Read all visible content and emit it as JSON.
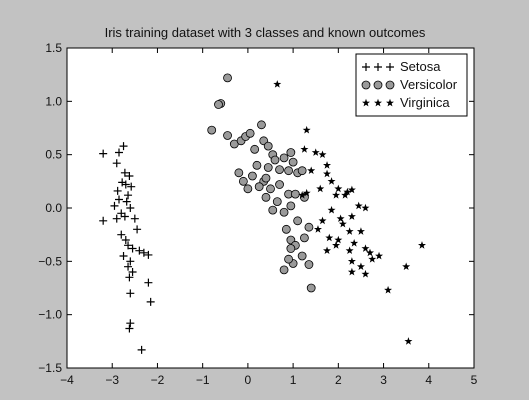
{
  "chart_data": {
    "type": "scatter",
    "title": "Iris training dataset with 3 classes and known outcomes",
    "xlabel": "",
    "ylabel": "",
    "xlim": [
      -4,
      5
    ],
    "ylim": [
      -1.5,
      1.5
    ],
    "xticks": [
      -4,
      -3,
      -2,
      -1,
      0,
      1,
      2,
      3,
      4,
      5
    ],
    "yticks": [
      -1.5,
      -1.0,
      -0.5,
      0.0,
      0.5,
      1.0,
      1.5
    ],
    "xtick_labels": [
      "−4",
      "−3",
      "−2",
      "−1",
      "0",
      "1",
      "2",
      "3",
      "4",
      "5"
    ],
    "ytick_labels": [
      "−1.5",
      "−1.0",
      "−0.5",
      "0.0",
      "0.5",
      "1.0",
      "1.5"
    ],
    "grid": false,
    "legend_position": "top-right",
    "series": [
      {
        "name": "Setosa",
        "marker": "plus",
        "color": "#000000",
        "points": [
          [
            -3.2,
            0.51
          ],
          [
            -2.85,
            0.52
          ],
          [
            -2.75,
            0.58
          ],
          [
            -2.9,
            0.42
          ],
          [
            -2.72,
            0.33
          ],
          [
            -2.62,
            0.3
          ],
          [
            -2.78,
            0.24
          ],
          [
            -2.7,
            0.22
          ],
          [
            -2.88,
            0.16
          ],
          [
            -2.58,
            0.2
          ],
          [
            -2.65,
            0.12
          ],
          [
            -2.85,
            0.08
          ],
          [
            -2.68,
            0.06
          ],
          [
            -2.95,
            0.02
          ],
          [
            -2.6,
            0.0
          ],
          [
            -2.8,
            -0.05
          ],
          [
            -2.72,
            -0.08
          ],
          [
            -3.2,
            -0.12
          ],
          [
            -2.9,
            -0.1
          ],
          [
            -2.5,
            -0.1
          ],
          [
            -2.45,
            -0.2
          ],
          [
            -2.8,
            -0.25
          ],
          [
            -2.7,
            -0.3
          ],
          [
            -2.65,
            -0.35
          ],
          [
            -2.55,
            -0.38
          ],
          [
            -2.4,
            -0.4
          ],
          [
            -2.3,
            -0.42
          ],
          [
            -2.2,
            -0.44
          ],
          [
            -2.75,
            -0.45
          ],
          [
            -2.6,
            -0.5
          ],
          [
            -2.65,
            -0.55
          ],
          [
            -2.55,
            -0.6
          ],
          [
            -2.62,
            -0.65
          ],
          [
            -2.2,
            -0.7
          ],
          [
            -2.6,
            -0.8
          ],
          [
            -2.15,
            -0.88
          ],
          [
            -2.6,
            -1.08
          ],
          [
            -2.62,
            -1.13
          ],
          [
            -2.35,
            -1.33
          ]
        ]
      },
      {
        "name": "Versicolor",
        "marker": "circle",
        "color": "#9a9a9a",
        "points": [
          [
            -0.45,
            1.22
          ],
          [
            -0.6,
            0.98
          ],
          [
            -0.65,
            0.97
          ],
          [
            -0.8,
            0.73
          ],
          [
            -0.45,
            0.68
          ],
          [
            -0.3,
            0.6
          ],
          [
            -0.15,
            0.63
          ],
          [
            -0.05,
            0.67
          ],
          [
            0.05,
            0.7
          ],
          [
            0.3,
            0.78
          ],
          [
            0.35,
            0.63
          ],
          [
            0.45,
            0.58
          ],
          [
            0.15,
            0.55
          ],
          [
            0.55,
            0.5
          ],
          [
            0.6,
            0.45
          ],
          [
            0.8,
            0.47
          ],
          [
            0.95,
            0.52
          ],
          [
            1.0,
            0.43
          ],
          [
            0.2,
            0.4
          ],
          [
            0.45,
            0.38
          ],
          [
            0.7,
            0.36
          ],
          [
            0.9,
            0.35
          ],
          [
            1.1,
            0.33
          ],
          [
            1.2,
            0.35
          ],
          [
            -0.2,
            0.33
          ],
          [
            -0.1,
            0.25
          ],
          [
            0.35,
            0.25
          ],
          [
            0.25,
            0.2
          ],
          [
            0.5,
            0.18
          ],
          [
            0.7,
            0.22
          ],
          [
            0.1,
            0.3
          ],
          [
            0.4,
            0.28
          ],
          [
            0.0,
            0.18
          ],
          [
            0.4,
            0.1
          ],
          [
            0.9,
            0.13
          ],
          [
            1.05,
            0.13
          ],
          [
            1.25,
            0.1
          ],
          [
            0.65,
            0.06
          ],
          [
            0.95,
            0.02
          ],
          [
            0.55,
            -0.02
          ],
          [
            0.8,
            -0.04
          ],
          [
            1.1,
            -0.12
          ],
          [
            1.35,
            -0.18
          ],
          [
            0.85,
            -0.2
          ],
          [
            0.95,
            -0.3
          ],
          [
            1.05,
            -0.35
          ],
          [
            0.95,
            -0.38
          ],
          [
            1.2,
            -0.45
          ],
          [
            1.0,
            -0.52
          ],
          [
            1.35,
            -0.53
          ],
          [
            0.8,
            -0.58
          ],
          [
            1.4,
            -0.75
          ],
          [
            0.9,
            -0.48
          ],
          [
            1.25,
            -0.28
          ]
        ]
      },
      {
        "name": "Virginica",
        "marker": "star",
        "color": "#000000",
        "points": [
          [
            0.65,
            1.16
          ],
          [
            1.3,
            0.73
          ],
          [
            1.25,
            0.55
          ],
          [
            1.5,
            0.52
          ],
          [
            1.65,
            0.5
          ],
          [
            1.75,
            0.4
          ],
          [
            1.4,
            0.35
          ],
          [
            1.75,
            0.32
          ],
          [
            1.85,
            0.25
          ],
          [
            1.6,
            0.18
          ],
          [
            2.0,
            0.18
          ],
          [
            2.2,
            0.15
          ],
          [
            2.3,
            0.17
          ],
          [
            1.95,
            0.12
          ],
          [
            1.2,
            0.12
          ],
          [
            1.3,
            0.14
          ],
          [
            2.15,
            0.12
          ],
          [
            2.45,
            0.02
          ],
          [
            2.6,
            0.0
          ],
          [
            1.85,
            -0.02
          ],
          [
            2.05,
            -0.1
          ],
          [
            2.3,
            -0.08
          ],
          [
            1.65,
            -0.12
          ],
          [
            2.1,
            -0.15
          ],
          [
            1.55,
            -0.2
          ],
          [
            2.25,
            -0.22
          ],
          [
            2.5,
            -0.22
          ],
          [
            1.8,
            -0.28
          ],
          [
            2.0,
            -0.3
          ],
          [
            2.35,
            -0.33
          ],
          [
            1.75,
            -0.4
          ],
          [
            2.25,
            -0.4
          ],
          [
            2.6,
            -0.38
          ],
          [
            2.7,
            -0.42
          ],
          [
            2.9,
            -0.45
          ],
          [
            2.3,
            -0.5
          ],
          [
            2.75,
            -0.48
          ],
          [
            2.5,
            -0.55
          ],
          [
            2.3,
            -0.6
          ],
          [
            2.6,
            -0.62
          ],
          [
            1.95,
            -0.35
          ],
          [
            3.1,
            -0.77
          ],
          [
            3.85,
            -0.35
          ],
          [
            3.5,
            -0.55
          ],
          [
            3.55,
            -1.25
          ]
        ]
      }
    ]
  }
}
